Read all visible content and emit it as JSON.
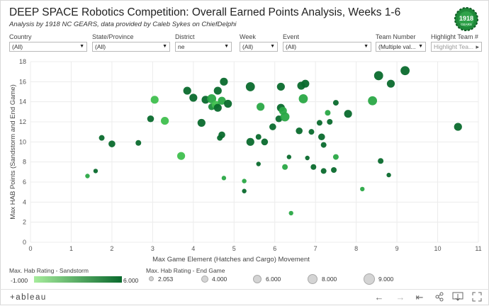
{
  "header": {
    "title": "DEEP SPACE Robotics Competition:  Overall Earned Points Analysis, Weeks 1-6",
    "subtitle": "Analysis by 1918 NC GEARS, data provided by Caleb Sykes on ChiefDelphi",
    "logo_text_top": "1918",
    "logo_text_bottom": "GEARS"
  },
  "filters": [
    {
      "label": "Country",
      "value": "(All)"
    },
    {
      "label": "State/Province",
      "value": "(All)"
    },
    {
      "label": "District",
      "value": "ne"
    },
    {
      "label": "Week",
      "value": "(All)"
    },
    {
      "label": "Event",
      "value": "(All)"
    },
    {
      "label": "Team Number",
      "value": "(Multiple val..."
    },
    {
      "label": "Highlight Team #",
      "placeholder": "Highlight Tea..."
    }
  ],
  "chart_data": {
    "type": "scatter",
    "xlabel": "Max Game Element (Hatches and Cargo) Movement",
    "ylabel": "Max HAB Points (Sandstorm and End Game)",
    "xlim": [
      0,
      11
    ],
    "ylim": [
      0,
      18
    ],
    "x_ticks": [
      "0",
      "1",
      "2",
      "3",
      "4",
      "5",
      "6",
      "7",
      "8",
      "9",
      "10",
      "11"
    ],
    "y_ticks": [
      "0",
      "2",
      "4",
      "6",
      "8",
      "10",
      "12",
      "14",
      "16",
      "18"
    ],
    "grid": true,
    "color_scale": {
      "title": "Max. Hab Rating - Sandstorm",
      "min": "-1.000",
      "max": "6.000",
      "min_color": "#a6ec9c",
      "max_color": "#0a6a2d"
    },
    "size_scale": {
      "title": "Max. Hab Rating - End Game",
      "steps": [
        "2.053",
        "4.000",
        "6.000",
        "8.000",
        "9.000"
      ]
    },
    "points": [
      {
        "x": 1.4,
        "y": 6.6,
        "color": 3,
        "size": 3
      },
      {
        "x": 1.6,
        "y": 7.1,
        "color": 5,
        "size": 3
      },
      {
        "x": 1.75,
        "y": 10.4,
        "color": 5,
        "size": 4
      },
      {
        "x": 2.0,
        "y": 9.8,
        "color": 5,
        "size": 5
      },
      {
        "x": 2.65,
        "y": 9.9,
        "color": 5,
        "size": 4
      },
      {
        "x": 2.95,
        "y": 12.3,
        "color": 5,
        "size": 5
      },
      {
        "x": 3.05,
        "y": 14.2,
        "color": 2,
        "size": 6
      },
      {
        "x": 3.3,
        "y": 12.1,
        "color": 2,
        "size": 6
      },
      {
        "x": 3.7,
        "y": 8.6,
        "color": 2,
        "size": 6
      },
      {
        "x": 3.85,
        "y": 15.1,
        "color": 5,
        "size": 6
      },
      {
        "x": 4.0,
        "y": 14.4,
        "color": 5,
        "size": 6
      },
      {
        "x": 4.2,
        "y": 11.9,
        "color": 5,
        "size": 6
      },
      {
        "x": 4.3,
        "y": 14.2,
        "color": 5,
        "size": 6
      },
      {
        "x": 4.45,
        "y": 13.5,
        "color": 4,
        "size": 5
      },
      {
        "x": 4.45,
        "y": 14.3,
        "color": 3,
        "size": 7
      },
      {
        "x": 4.55,
        "y": 13.7,
        "color": 2,
        "size": 6
      },
      {
        "x": 4.6,
        "y": 13.4,
        "color": 5,
        "size": 6
      },
      {
        "x": 4.6,
        "y": 15.1,
        "color": 5,
        "size": 6
      },
      {
        "x": 4.65,
        "y": 10.4,
        "color": 5,
        "size": 4
      },
      {
        "x": 4.7,
        "y": 10.7,
        "color": 5,
        "size": 5
      },
      {
        "x": 4.7,
        "y": 14.1,
        "color": 3,
        "size": 6
      },
      {
        "x": 4.75,
        "y": 16.0,
        "color": 5,
        "size": 6
      },
      {
        "x": 4.75,
        "y": 6.4,
        "color": 3,
        "size": 3
      },
      {
        "x": 4.85,
        "y": 13.8,
        "color": 5,
        "size": 6
      },
      {
        "x": 5.25,
        "y": 5.1,
        "color": 5,
        "size": 3
      },
      {
        "x": 5.25,
        "y": 6.1,
        "color": 3,
        "size": 3
      },
      {
        "x": 5.4,
        "y": 15.5,
        "color": 5,
        "size": 7
      },
      {
        "x": 5.4,
        "y": 10.0,
        "color": 5,
        "size": 6
      },
      {
        "x": 5.6,
        "y": 10.5,
        "color": 5,
        "size": 4
      },
      {
        "x": 5.6,
        "y": 7.8,
        "color": 5,
        "size": 3
      },
      {
        "x": 5.65,
        "y": 13.5,
        "color": 3,
        "size": 6
      },
      {
        "x": 5.75,
        "y": 10.0,
        "color": 5,
        "size": 5
      },
      {
        "x": 5.95,
        "y": 11.5,
        "color": 5,
        "size": 5
      },
      {
        "x": 6.1,
        "y": 12.3,
        "color": 5,
        "size": 5
      },
      {
        "x": 6.15,
        "y": 15.5,
        "color": 5,
        "size": 6
      },
      {
        "x": 6.15,
        "y": 13.4,
        "color": 5,
        "size": 6
      },
      {
        "x": 6.2,
        "y": 13.1,
        "color": 3,
        "size": 6
      },
      {
        "x": 6.25,
        "y": 7.5,
        "color": 3,
        "size": 4
      },
      {
        "x": 6.25,
        "y": 12.5,
        "color": 3,
        "size": 7
      },
      {
        "x": 6.35,
        "y": 8.5,
        "color": 5,
        "size": 3
      },
      {
        "x": 6.4,
        "y": 2.9,
        "color": 3,
        "size": 3
      },
      {
        "x": 6.6,
        "y": 11.1,
        "color": 5,
        "size": 5
      },
      {
        "x": 6.65,
        "y": 15.6,
        "color": 5,
        "size": 6
      },
      {
        "x": 6.7,
        "y": 14.3,
        "color": 3,
        "size": 7
      },
      {
        "x": 6.75,
        "y": 15.8,
        "color": 5,
        "size": 6
      },
      {
        "x": 6.8,
        "y": 8.4,
        "color": 5,
        "size": 3
      },
      {
        "x": 6.9,
        "y": 11.0,
        "color": 5,
        "size": 4
      },
      {
        "x": 6.95,
        "y": 7.5,
        "color": 5,
        "size": 4
      },
      {
        "x": 7.1,
        "y": 11.9,
        "color": 5,
        "size": 4
      },
      {
        "x": 7.15,
        "y": 10.5,
        "color": 5,
        "size": 5
      },
      {
        "x": 7.2,
        "y": 7.1,
        "color": 5,
        "size": 4
      },
      {
        "x": 7.2,
        "y": 9.7,
        "color": 5,
        "size": 4
      },
      {
        "x": 7.3,
        "y": 12.9,
        "color": 3,
        "size": 4
      },
      {
        "x": 7.35,
        "y": 12.0,
        "color": 5,
        "size": 4
      },
      {
        "x": 7.45,
        "y": 7.2,
        "color": 5,
        "size": 4
      },
      {
        "x": 7.5,
        "y": 8.5,
        "color": 3,
        "size": 4
      },
      {
        "x": 7.5,
        "y": 13.9,
        "color": 5,
        "size": 4
      },
      {
        "x": 7.8,
        "y": 12.8,
        "color": 5,
        "size": 6
      },
      {
        "x": 8.15,
        "y": 5.3,
        "color": 3,
        "size": 3
      },
      {
        "x": 8.4,
        "y": 14.1,
        "color": 3,
        "size": 7
      },
      {
        "x": 8.55,
        "y": 16.6,
        "color": 5,
        "size": 7
      },
      {
        "x": 8.6,
        "y": 8.1,
        "color": 5,
        "size": 4
      },
      {
        "x": 8.8,
        "y": 6.7,
        "color": 5,
        "size": 3
      },
      {
        "x": 8.85,
        "y": 15.8,
        "color": 5,
        "size": 6
      },
      {
        "x": 9.2,
        "y": 17.1,
        "color": 5,
        "size": 7
      },
      {
        "x": 10.5,
        "y": 11.5,
        "color": 5,
        "size": 6
      }
    ]
  },
  "legend": {
    "color_title": "Max. Hab Rating - Sandstorm",
    "color_min": "-1.000",
    "color_max": "6.000",
    "size_title": "Max. Hab Rating - End Game",
    "size_values": [
      "2.053",
      "4.000",
      "6.000",
      "8.000",
      "9.000"
    ]
  },
  "toolbar": {
    "brand": "+ableau",
    "buttons": [
      "undo-icon",
      "redo-icon",
      "revert-icon",
      "share-icon",
      "download-icon",
      "fullscreen-icon"
    ]
  }
}
